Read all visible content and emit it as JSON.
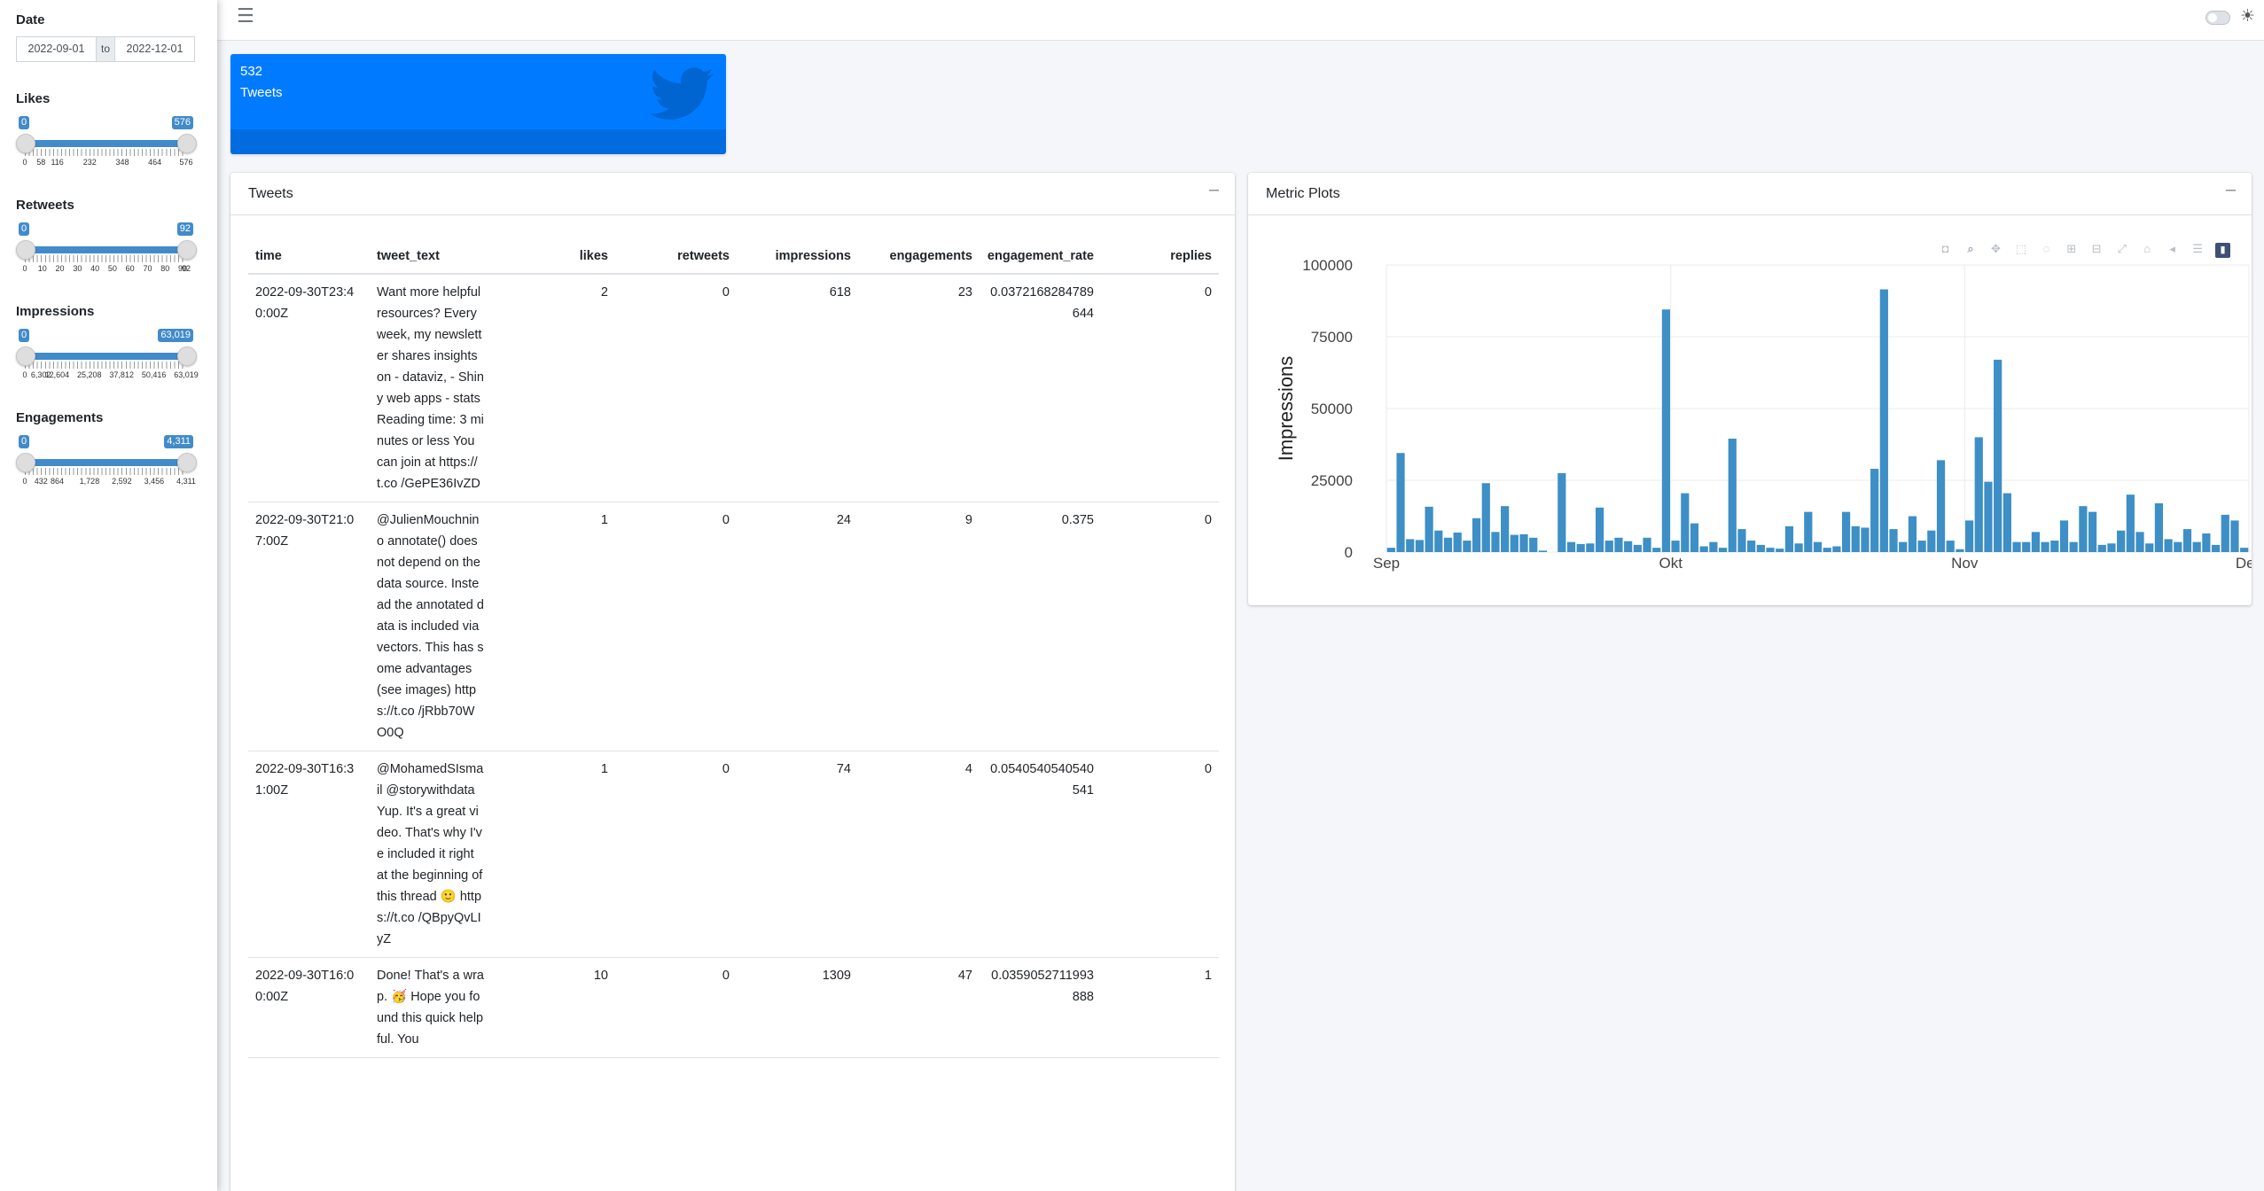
{
  "sidebar": {
    "date": {
      "label": "Date",
      "start": "2022-09-01",
      "sep": "to",
      "end": "2022-12-01"
    },
    "likes": {
      "label": "Likes",
      "min_tag": "0",
      "max_tag": "576",
      "ticks": [
        "0",
        "58",
        "116",
        "232",
        "348",
        "464",
        "576"
      ],
      "tick_vals": [
        0,
        58,
        116,
        232,
        348,
        464,
        576
      ],
      "range": [
        0,
        576
      ]
    },
    "retweets": {
      "label": "Retweets",
      "min_tag": "0",
      "max_tag": "92",
      "ticks": [
        "0",
        "10",
        "20",
        "30",
        "40",
        "50",
        "60",
        "70",
        "80",
        "90",
        "92"
      ],
      "tick_vals": [
        0,
        10,
        20,
        30,
        40,
        50,
        60,
        70,
        80,
        90,
        92
      ],
      "range": [
        0,
        92
      ]
    },
    "impressions": {
      "label": "Impressions",
      "min_tag": "0",
      "max_tag": "63,019",
      "ticks": [
        "0",
        "6,302",
        "12,604",
        "25,208",
        "37,812",
        "50,416",
        "63,019"
      ],
      "tick_vals": [
        0,
        6302,
        12604,
        25208,
        37812,
        50416,
        63019
      ],
      "range": [
        0,
        63019
      ]
    },
    "engagements": {
      "label": "Engagements",
      "min_tag": "0",
      "max_tag": "4,311",
      "ticks": [
        "0",
        "432",
        "864",
        "1,728",
        "2,592",
        "3,456",
        "4,311"
      ],
      "tick_vals": [
        0,
        432,
        864,
        1728,
        2592,
        3456,
        4311
      ],
      "range": [
        0,
        4311
      ]
    }
  },
  "nav": {
    "menu_icon": "hamburger-icon",
    "theme_icon": "sun-gear-icon"
  },
  "valuebox": {
    "value": "532",
    "subtitle": "Tweets",
    "icon": "twitter-bird-icon",
    "color": "#007bff"
  },
  "tweets_card": {
    "title": "Tweets",
    "columns": [
      "time",
      "tweet_text",
      "likes",
      "retweets",
      "impressions",
      "engagements",
      "engagement_rate",
      "replies"
    ],
    "rows": [
      {
        "time": "2022-09-30T23:40:00Z",
        "tweet_text": "Want more helpful resources? Every week, my newsletter shares insights on - dataviz, - Shiny web apps - stats Reading time: 3 minutes or less You can join at https://t.co /GePE36IvZD",
        "likes": "2",
        "retweets": "0",
        "impressions": "618",
        "engagements": "23",
        "engagement_rate": "0.0372168284789644",
        "replies": "0"
      },
      {
        "time": "2022-09-30T21:07:00Z",
        "tweet_text": "@JulienMouchnino annotate() does not depend on the data source. Instead the annotated data is included via vectors. This has some advantages (see images) https://t.co /jRbb70WO0Q",
        "likes": "1",
        "retweets": "0",
        "impressions": "24",
        "engagements": "9",
        "engagement_rate": "0.375",
        "replies": "0"
      },
      {
        "time": "2022-09-30T16:31:00Z",
        "tweet_text": "@MohamedSIsmail @storywithdata Yup. It's a great video. That's why I've included it right at the beginning of this thread 🙂 https://t.co /QBpyQvLIyZ",
        "likes": "1",
        "retweets": "0",
        "impressions": "74",
        "engagements": "4",
        "engagement_rate": "0.0540540540540541",
        "replies": "0"
      },
      {
        "time": "2022-09-30T16:00:00Z",
        "tweet_text": "Done! That's a wrap. 🥳 Hope you found this quick helpful. You",
        "likes": "10",
        "retweets": "0",
        "impressions": "1309",
        "engagements": "47",
        "engagement_rate": "0.0359052711993888",
        "replies": "1"
      }
    ]
  },
  "plot_card": {
    "title": "Metric Plots"
  },
  "chart_data": {
    "type": "bar",
    "ylabel": "Impressions",
    "xlabel": "",
    "x_tick_labels": [
      "Sep",
      "Okt",
      "Nov",
      "Dez"
    ],
    "y_tick_labels": [
      "0",
      "25000",
      "50000",
      "75000",
      "100000"
    ],
    "ylim": [
      0,
      100000
    ],
    "x_range_days": [
      0,
      91
    ],
    "bar_color": "#3d8fc6",
    "grid": true,
    "days": [
      0.5,
      1.5,
      2.5,
      3.5,
      4.5,
      5.5,
      6.5,
      7.5,
      8.5,
      9.5,
      10.5,
      11.5,
      12.5,
      13.5,
      14.5,
      15.5,
      16.5,
      17.5,
      18.5,
      19.5,
      20.5,
      21.5,
      22.5,
      23.5,
      24.5,
      25.5,
      26.5,
      27.5,
      28.5,
      29.5,
      30.5,
      31.5,
      32.5,
      33.5,
      34.5,
      35.5,
      36.5,
      37.5,
      38.5,
      39.5,
      40.5,
      41.5,
      42.5,
      43.5,
      44.5,
      45.5,
      46.5,
      47.5,
      48.5,
      49.5,
      50.5,
      51.5,
      52.5,
      53.5,
      54.5,
      55.5,
      56.5,
      57.5,
      58.5,
      59.5,
      60.5,
      61.5,
      62.5,
      63.5,
      64.5,
      65.5,
      66.5,
      67.5,
      68.5,
      69.5,
      70.5,
      71.5,
      72.5,
      73.5,
      74.5,
      75.5,
      76.5,
      77.5,
      78.5,
      79.5,
      80.5,
      81.5,
      82.5,
      83.5,
      84.5,
      85.5,
      86.5,
      87.5,
      88.5,
      89.5,
      90.5
    ],
    "values": [
      1500,
      34500,
      4500,
      4200,
      15800,
      7500,
      5000,
      6800,
      4000,
      11800,
      24000,
      7000,
      16000,
      6000,
      6200,
      5000,
      500,
      0,
      27500,
      3500,
      2800,
      3000,
      15500,
      4000,
      5000,
      3800,
      2500,
      5000,
      1500,
      84500,
      4000,
      20500,
      10000,
      2000,
      3500,
      1500,
      39500,
      8000,
      4000,
      2500,
      1500,
      1200,
      9000,
      3000,
      14000,
      3500,
      1500,
      2000,
      14000,
      9000,
      8500,
      29000,
      91500,
      8000,
      3500,
      12500,
      4000,
      7500,
      32000,
      4000,
      1000,
      11000,
      40000,
      24500,
      67000,
      20500,
      3500,
      3500,
      7000,
      3500,
      4000,
      11000,
      3500,
      16000,
      14000,
      2500,
      3000,
      7500,
      20000,
      7000,
      3000,
      17000,
      4500,
      3500,
      8000,
      3500,
      6500,
      2500,
      13000,
      11000,
      1500
    ]
  }
}
